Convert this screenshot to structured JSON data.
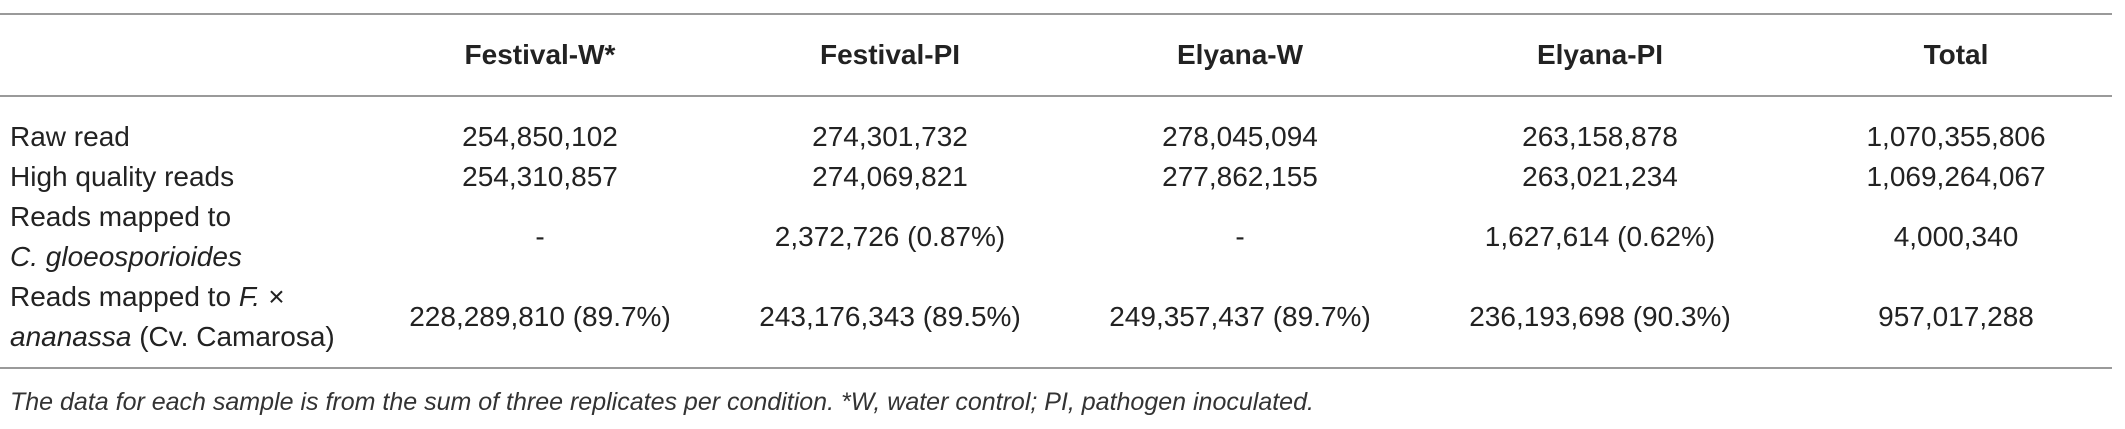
{
  "table": {
    "headers": [
      "",
      "Festival-W*",
      "Festival-PI",
      "Elyana-W",
      "Elyana-PI",
      "Total"
    ],
    "rows": [
      {
        "label": "Raw read",
        "values": [
          "254,850,102",
          "274,301,732",
          "278,045,094",
          "263,158,878",
          "1,070,355,806"
        ]
      },
      {
        "label": "High quality reads",
        "values": [
          "254,310,857",
          "274,069,821",
          "277,862,155",
          "263,021,234",
          "1,069,264,067"
        ]
      },
      {
        "label_line1": "Reads mapped to",
        "label_line2_italic": "C. gloeosporioides",
        "values": [
          "-",
          "2,372,726 (0.87%)",
          "-",
          "1,627,614 (0.62%)",
          "4,000,340"
        ]
      },
      {
        "label_line1_prefix": "Reads mapped to ",
        "label_line1_italic": "F. ×",
        "label_line2_italic": "ananassa",
        "label_line2_suffix": " (Cv. Camarosa)",
        "values": [
          "228,289,810 (89.7%)",
          "243,176,343 (89.5%)",
          "249,357,437 (89.7%)",
          "236,193,698 (90.3%)",
          "957,017,288"
        ]
      }
    ]
  },
  "footnote": "The data for each sample is from the sum of three replicates per condition. *W, water control; PI, pathogen inoculated."
}
